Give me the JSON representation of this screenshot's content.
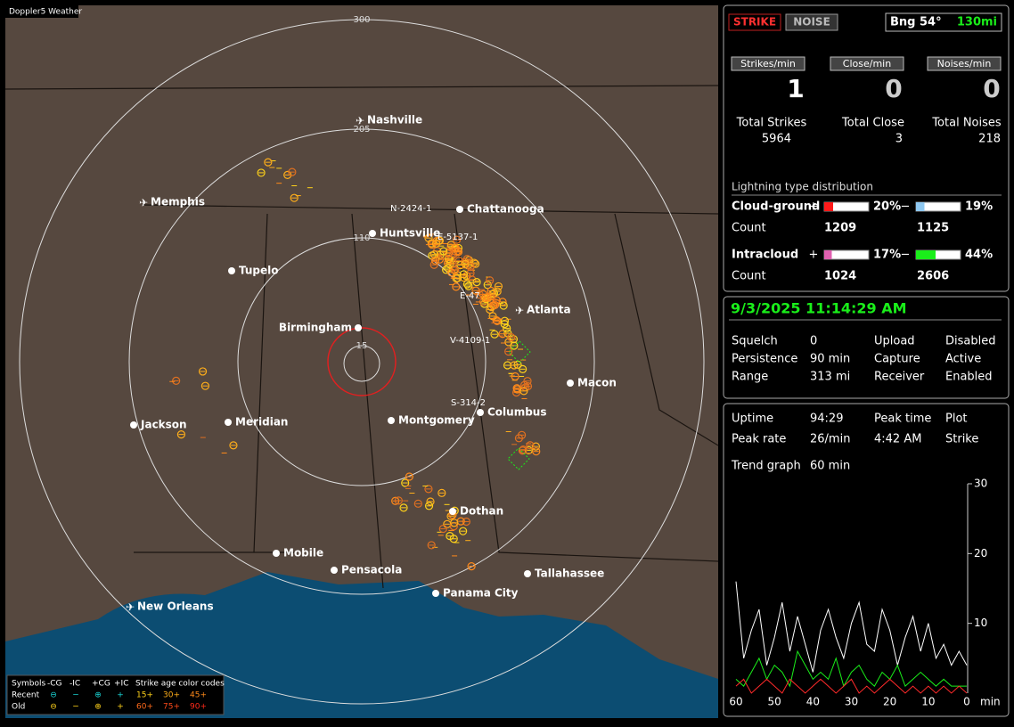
{
  "map": {
    "title": "Doppler5 Weather",
    "rings": [
      "300",
      "205",
      "110",
      "15"
    ],
    "cities": [
      "Nashville",
      "Memphis",
      "Chattanooga",
      "Huntsville",
      "Tupelo",
      "Birmingham",
      "Atlanta",
      "Macon",
      "Columbus",
      "Jackson",
      "Meridian",
      "Montgomery",
      "Dothan",
      "Mobile",
      "Pensacola",
      "Panama City",
      "Tallahassee",
      "New Orleans"
    ],
    "storms": [
      "N-2424-1",
      "E-5137-1",
      "E-47",
      "V-4109-1",
      "S-314-2"
    ],
    "legend": {
      "symbols": "Symbols",
      "kinds": [
        "-CG",
        "-IC",
        "+CG",
        "+IC"
      ],
      "age_title": "Strike age color codes",
      "rows": [
        "Recent",
        "Old"
      ],
      "ages": [
        [
          "15+",
          "30+",
          "45+"
        ],
        [
          "60+",
          "75+",
          "90+"
        ]
      ]
    }
  },
  "status": {
    "strike": "STRIKE",
    "noise": "NOISE",
    "bearing": "Bng 54°",
    "distance": "130mi"
  },
  "rates": [
    {
      "label": "Strikes/min",
      "value": "1",
      "total_label": "Total Strikes",
      "total": "5964"
    },
    {
      "label": "Close/min",
      "value": "0",
      "total_label": "Total Close",
      "total": "3"
    },
    {
      "label": "Noises/min",
      "value": "0",
      "total_label": "Total Noises",
      "total": "218"
    }
  ],
  "distribution": {
    "title": "Lightning type distribution",
    "rows": [
      {
        "label": "Cloud-ground",
        "count_label": "Count",
        "pos_sign": "+",
        "pos_pct": "20%",
        "pos_color": "#ff1a1a",
        "pos_count": "1209",
        "neg_sign": "−",
        "neg_pct": "19%",
        "neg_color": "#8ec8f0",
        "neg_count": "1125"
      },
      {
        "label": "Intracloud",
        "count_label": "Count",
        "pos_sign": "+",
        "pos_pct": "17%",
        "pos_color": "#e060b0",
        "pos_count": "1024",
        "neg_sign": "−",
        "neg_pct": "44%",
        "neg_color": "#1aee1a",
        "neg_count": "2606"
      }
    ]
  },
  "clock": "9/3/2025 11:14:29 AM",
  "settings": [
    [
      "Squelch",
      "0",
      "Upload",
      "Disabled"
    ],
    [
      "Persistence",
      "90 min",
      "Capture",
      "Active"
    ],
    [
      "Range",
      "313 mi",
      "Receiver",
      "Enabled"
    ]
  ],
  "stats": [
    [
      "Uptime",
      "94:29",
      "Peak time",
      "Plot"
    ],
    [
      "Peak rate",
      "26/min",
      "4:42 AM",
      "Strike"
    ],
    [
      "Trend graph",
      "60 min"
    ]
  ],
  "trend": {
    "type": "line",
    "ylim": [
      0,
      30
    ],
    "yticks": [
      10,
      20,
      30
    ],
    "xlim": [
      60,
      0
    ],
    "xticks": [
      60,
      50,
      40,
      30,
      20,
      10,
      0
    ],
    "xunit": "min",
    "x": [
      60,
      58,
      56,
      54,
      52,
      50,
      48,
      46,
      44,
      42,
      40,
      38,
      36,
      34,
      32,
      30,
      28,
      26,
      24,
      22,
      20,
      18,
      16,
      14,
      12,
      10,
      8,
      6,
      4,
      2,
      0
    ],
    "series": [
      {
        "color": "#ffffff",
        "values": [
          16,
          5,
          9,
          12,
          4,
          8,
          13,
          6,
          11,
          7,
          3,
          9,
          12,
          8,
          5,
          10,
          13,
          7,
          6,
          12,
          9,
          4,
          8,
          11,
          6,
          10,
          5,
          7,
          4,
          6,
          4
        ]
      },
      {
        "color": "#1aee1a",
        "values": [
          2,
          1,
          3,
          5,
          2,
          4,
          3,
          1,
          6,
          4,
          2,
          3,
          2,
          5,
          1,
          3,
          4,
          2,
          1,
          3,
          2,
          4,
          1,
          2,
          3,
          2,
          1,
          2,
          1,
          1,
          1
        ]
      },
      {
        "color": "#ff2a2a",
        "values": [
          1,
          2,
          0,
          1,
          2,
          1,
          0,
          2,
          1,
          0,
          1,
          2,
          1,
          0,
          1,
          2,
          0,
          1,
          0,
          1,
          2,
          1,
          0,
          1,
          0,
          1,
          0,
          1,
          0,
          1,
          0
        ]
      }
    ]
  }
}
